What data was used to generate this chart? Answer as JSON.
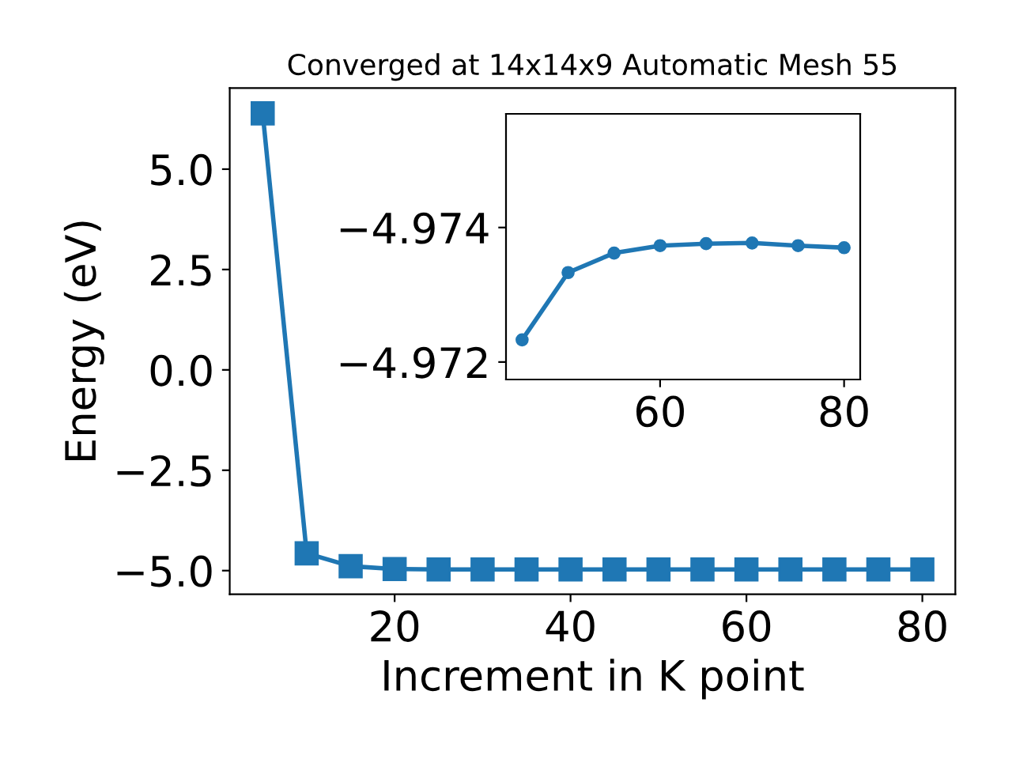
{
  "chart_data": [
    {
      "type": "line",
      "title": "Converged at 14x14x9 Automatic Mesh 55",
      "xlabel": "Increment in K point",
      "ylabel": "Energy (eV)",
      "x": [
        5,
        10,
        15,
        20,
        25,
        30,
        35,
        40,
        45,
        50,
        55,
        60,
        65,
        70,
        75,
        80
      ],
      "series": [
        {
          "color": "#1f77b4",
          "values": [
            6.39,
            -4.57,
            -4.89,
            -4.96,
            -4.97,
            -4.97,
            -4.97,
            -4.97,
            -4.97,
            -4.97,
            -4.97,
            -4.97,
            -4.97,
            -4.97,
            -4.97,
            -4.97
          ]
        }
      ],
      "marker": "square",
      "line_style": "solid",
      "grid": false,
      "legend": false,
      "xlim": [
        1.25,
        83.75
      ],
      "xticks": [
        20,
        40,
        60,
        80
      ],
      "ylim": [
        -5.59,
        7.02
      ],
      "yticks": [
        {
          "value": -5,
          "label": "−5.0"
        },
        {
          "value": -2.5,
          "label": "−2.5"
        },
        {
          "value": 0,
          "label": "0.0"
        },
        {
          "value": 2.5,
          "label": "2.5"
        },
        {
          "value": 5,
          "label": "5.0"
        }
      ]
    },
    {
      "type": "line",
      "x": [
        45,
        50,
        55,
        60,
        65,
        70,
        75,
        80
      ],
      "series": [
        {
          "color": "#1f77b4",
          "values": [
            -4.97233,
            -4.97333,
            -4.97362,
            -4.97373,
            -4.97376,
            -4.97377,
            -4.97373,
            -4.9737
          ]
        }
      ],
      "marker": "circle",
      "line_style": "solid",
      "grid": false,
      "legend": false,
      "xlim": [
        43.25,
        81.75
      ],
      "xticks": [
        60,
        80
      ],
      "ylim": [
        -4.97174,
        -4.97569
      ],
      "yticks": [
        {
          "value": -4.974,
          "label": "−4.974"
        },
        {
          "value": -4.972,
          "label": "−4.972"
        }
      ]
    }
  ]
}
